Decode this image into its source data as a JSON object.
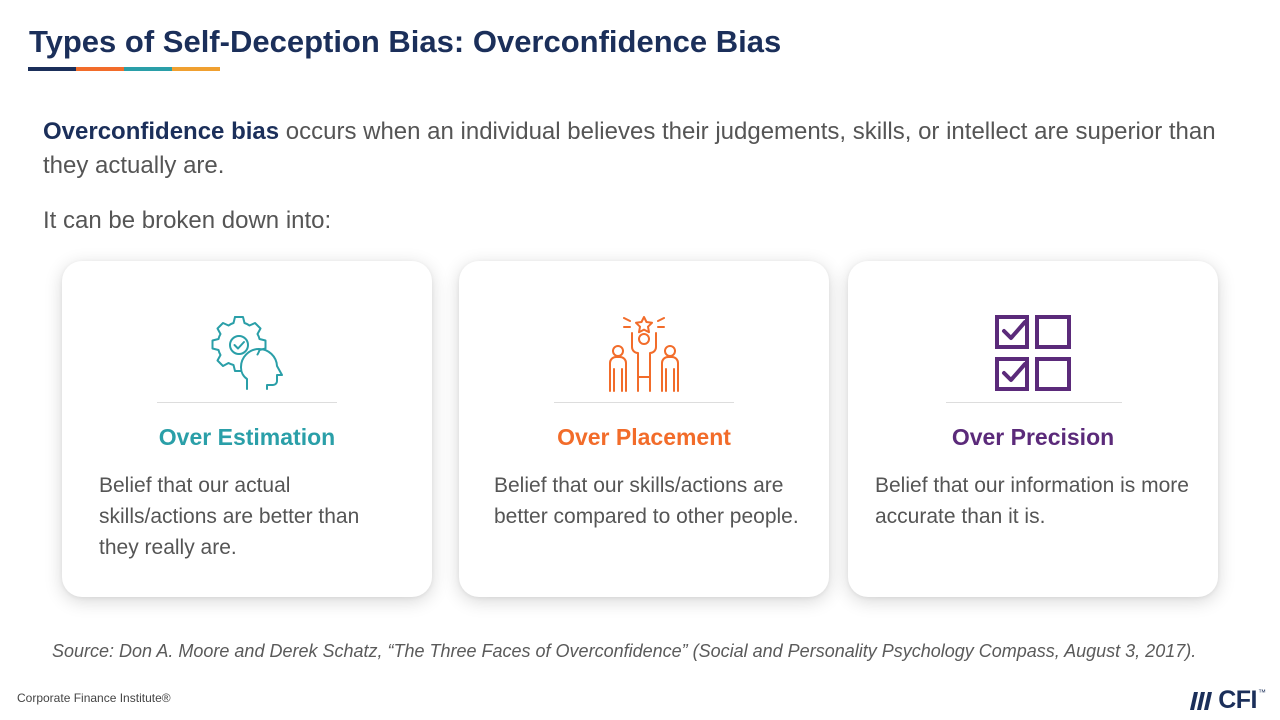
{
  "title": "Types of Self-Deception Bias: Overconfidence Bias",
  "title_rule_colors": [
    "#1b2f5a",
    "#f26c2a",
    "#2a9fa8",
    "#f0a030"
  ],
  "intro": {
    "term": "Overconfidence bias",
    "text": " occurs when an individual believes their judgements, skills, or intellect are superior than they actually are."
  },
  "breakdown_label": "It can be broken down into:",
  "cards": [
    {
      "icon": "gear-head-icon",
      "title": "Over Estimation",
      "description": "Belief that our actual skills/actions are better than they really are.",
      "color": "#2a9fa8"
    },
    {
      "icon": "people-podium-star-icon",
      "title": "Over Placement",
      "description": "Belief that our skills/actions are better compared to other people.",
      "color": "#f26c2a"
    },
    {
      "icon": "checklist-icon",
      "title": "Over Precision",
      "description": "Belief that our information is more accurate than it is.",
      "color": "#5b2a7a"
    }
  ],
  "source": "Source: Don A. Moore and Derek Schatz, “The Three Faces of Overconfidence” (Social and Personality Psychology Compass, August 3, 2017).",
  "footer": {
    "company": "Corporate Finance Institute®",
    "logo_text": "CFI",
    "logo_mark": "™"
  }
}
